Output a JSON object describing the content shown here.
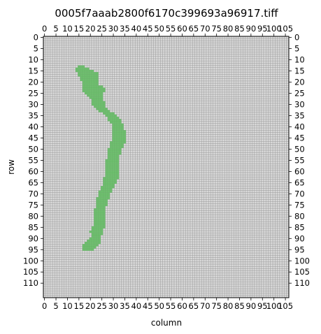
{
  "chart_data": {
    "type": "heatmap",
    "title": "0005f7aaab2800f6170c399693a96917.tiff",
    "xlabel": "column",
    "ylabel": "row",
    "xlim": [
      0,
      107
    ],
    "ylim": [
      117,
      0
    ],
    "x_tick_labels": [
      "0",
      "5",
      "10",
      "15",
      "20",
      "25",
      "30",
      "35",
      "40",
      "45",
      "50",
      "55",
      "60",
      "65",
      "70",
      "75",
      "80",
      "85",
      "90",
      "95",
      "100",
      "105"
    ],
    "y_tick_labels": [
      "0",
      "5",
      "10",
      "15",
      "20",
      "25",
      "30",
      "35",
      "40",
      "45",
      "50",
      "55",
      "60",
      "65",
      "70",
      "75",
      "80",
      "85",
      "90",
      "95",
      "100",
      "105",
      "110"
    ],
    "grid": true,
    "background_color": "#d9d9d9",
    "grid_color": "#9a9a9a",
    "mask_color": "#5cb85c",
    "mask_rows": [
      {
        "row": 13,
        "start": 15,
        "end": 17
      },
      {
        "row": 14,
        "start": 14,
        "end": 19
      },
      {
        "row": 15,
        "start": 14,
        "end": 21
      },
      {
        "row": 16,
        "start": 15,
        "end": 23
      },
      {
        "row": 17,
        "start": 15,
        "end": 23
      },
      {
        "row": 18,
        "start": 16,
        "end": 23
      },
      {
        "row": 19,
        "start": 16,
        "end": 23
      },
      {
        "row": 20,
        "start": 17,
        "end": 23
      },
      {
        "row": 21,
        "start": 17,
        "end": 23
      },
      {
        "row": 22,
        "start": 17,
        "end": 25
      },
      {
        "row": 23,
        "start": 17,
        "end": 26
      },
      {
        "row": 24,
        "start": 17,
        "end": 26
      },
      {
        "row": 25,
        "start": 18,
        "end": 25
      },
      {
        "row": 26,
        "start": 19,
        "end": 25
      },
      {
        "row": 27,
        "start": 20,
        "end": 25
      },
      {
        "row": 28,
        "start": 21,
        "end": 25
      },
      {
        "row": 29,
        "start": 21,
        "end": 26
      },
      {
        "row": 30,
        "start": 21,
        "end": 26
      },
      {
        "row": 31,
        "start": 22,
        "end": 26
      },
      {
        "row": 32,
        "start": 23,
        "end": 27
      },
      {
        "row": 33,
        "start": 24,
        "end": 28
      },
      {
        "row": 34,
        "start": 26,
        "end": 30
      },
      {
        "row": 35,
        "start": 27,
        "end": 31
      },
      {
        "row": 36,
        "start": 28,
        "end": 32
      },
      {
        "row": 37,
        "start": 28,
        "end": 33
      },
      {
        "row": 38,
        "start": 29,
        "end": 33
      },
      {
        "row": 39,
        "start": 30,
        "end": 34
      },
      {
        "row": 40,
        "start": 30,
        "end": 34
      },
      {
        "row": 41,
        "start": 30,
        "end": 34
      },
      {
        "row": 42,
        "start": 30,
        "end": 35
      },
      {
        "row": 43,
        "start": 30,
        "end": 35
      },
      {
        "row": 44,
        "start": 30,
        "end": 35
      },
      {
        "row": 45,
        "start": 30,
        "end": 35
      },
      {
        "row": 46,
        "start": 30,
        "end": 35
      },
      {
        "row": 47,
        "start": 29,
        "end": 35
      },
      {
        "row": 48,
        "start": 29,
        "end": 34
      },
      {
        "row": 49,
        "start": 29,
        "end": 34
      },
      {
        "row": 50,
        "start": 28,
        "end": 33
      },
      {
        "row": 51,
        "start": 28,
        "end": 33
      },
      {
        "row": 52,
        "start": 28,
        "end": 33
      },
      {
        "row": 53,
        "start": 28,
        "end": 32
      },
      {
        "row": 54,
        "start": 28,
        "end": 32
      },
      {
        "row": 55,
        "start": 27,
        "end": 32
      },
      {
        "row": 56,
        "start": 27,
        "end": 32
      },
      {
        "row": 57,
        "start": 27,
        "end": 32
      },
      {
        "row": 58,
        "start": 27,
        "end": 32
      },
      {
        "row": 59,
        "start": 27,
        "end": 32
      },
      {
        "row": 60,
        "start": 27,
        "end": 32
      },
      {
        "row": 61,
        "start": 27,
        "end": 32
      },
      {
        "row": 62,
        "start": 27,
        "end": 32
      },
      {
        "row": 63,
        "start": 26,
        "end": 32
      },
      {
        "row": 64,
        "start": 26,
        "end": 31
      },
      {
        "row": 65,
        "start": 26,
        "end": 31
      },
      {
        "row": 66,
        "start": 26,
        "end": 30
      },
      {
        "row": 67,
        "start": 25,
        "end": 30
      },
      {
        "row": 68,
        "start": 25,
        "end": 29
      },
      {
        "row": 69,
        "start": 24,
        "end": 29
      },
      {
        "row": 70,
        "start": 24,
        "end": 28
      },
      {
        "row": 71,
        "start": 24,
        "end": 28
      },
      {
        "row": 72,
        "start": 23,
        "end": 28
      },
      {
        "row": 73,
        "start": 23,
        "end": 27
      },
      {
        "row": 74,
        "start": 23,
        "end": 27
      },
      {
        "row": 75,
        "start": 23,
        "end": 27
      },
      {
        "row": 76,
        "start": 23,
        "end": 26
      },
      {
        "row": 77,
        "start": 22,
        "end": 26
      },
      {
        "row": 78,
        "start": 22,
        "end": 26
      },
      {
        "row": 79,
        "start": 22,
        "end": 26
      },
      {
        "row": 80,
        "start": 22,
        "end": 26
      },
      {
        "row": 81,
        "start": 22,
        "end": 26
      },
      {
        "row": 82,
        "start": 22,
        "end": 26
      },
      {
        "row": 83,
        "start": 22,
        "end": 26
      },
      {
        "row": 84,
        "start": 22,
        "end": 26
      },
      {
        "row": 85,
        "start": 21,
        "end": 26
      },
      {
        "row": 86,
        "start": 21,
        "end": 25
      },
      {
        "row": 87,
        "start": 20,
        "end": 25
      },
      {
        "row": 88,
        "start": 21,
        "end": 25
      },
      {
        "row": 89,
        "start": 21,
        "end": 24
      },
      {
        "row": 90,
        "start": 20,
        "end": 24
      },
      {
        "row": 91,
        "start": 19,
        "end": 24
      },
      {
        "row": 92,
        "start": 18,
        "end": 24
      },
      {
        "row": 93,
        "start": 17,
        "end": 23
      },
      {
        "row": 94,
        "start": 17,
        "end": 22
      },
      {
        "row": 95,
        "start": 17,
        "end": 21
      }
    ]
  }
}
